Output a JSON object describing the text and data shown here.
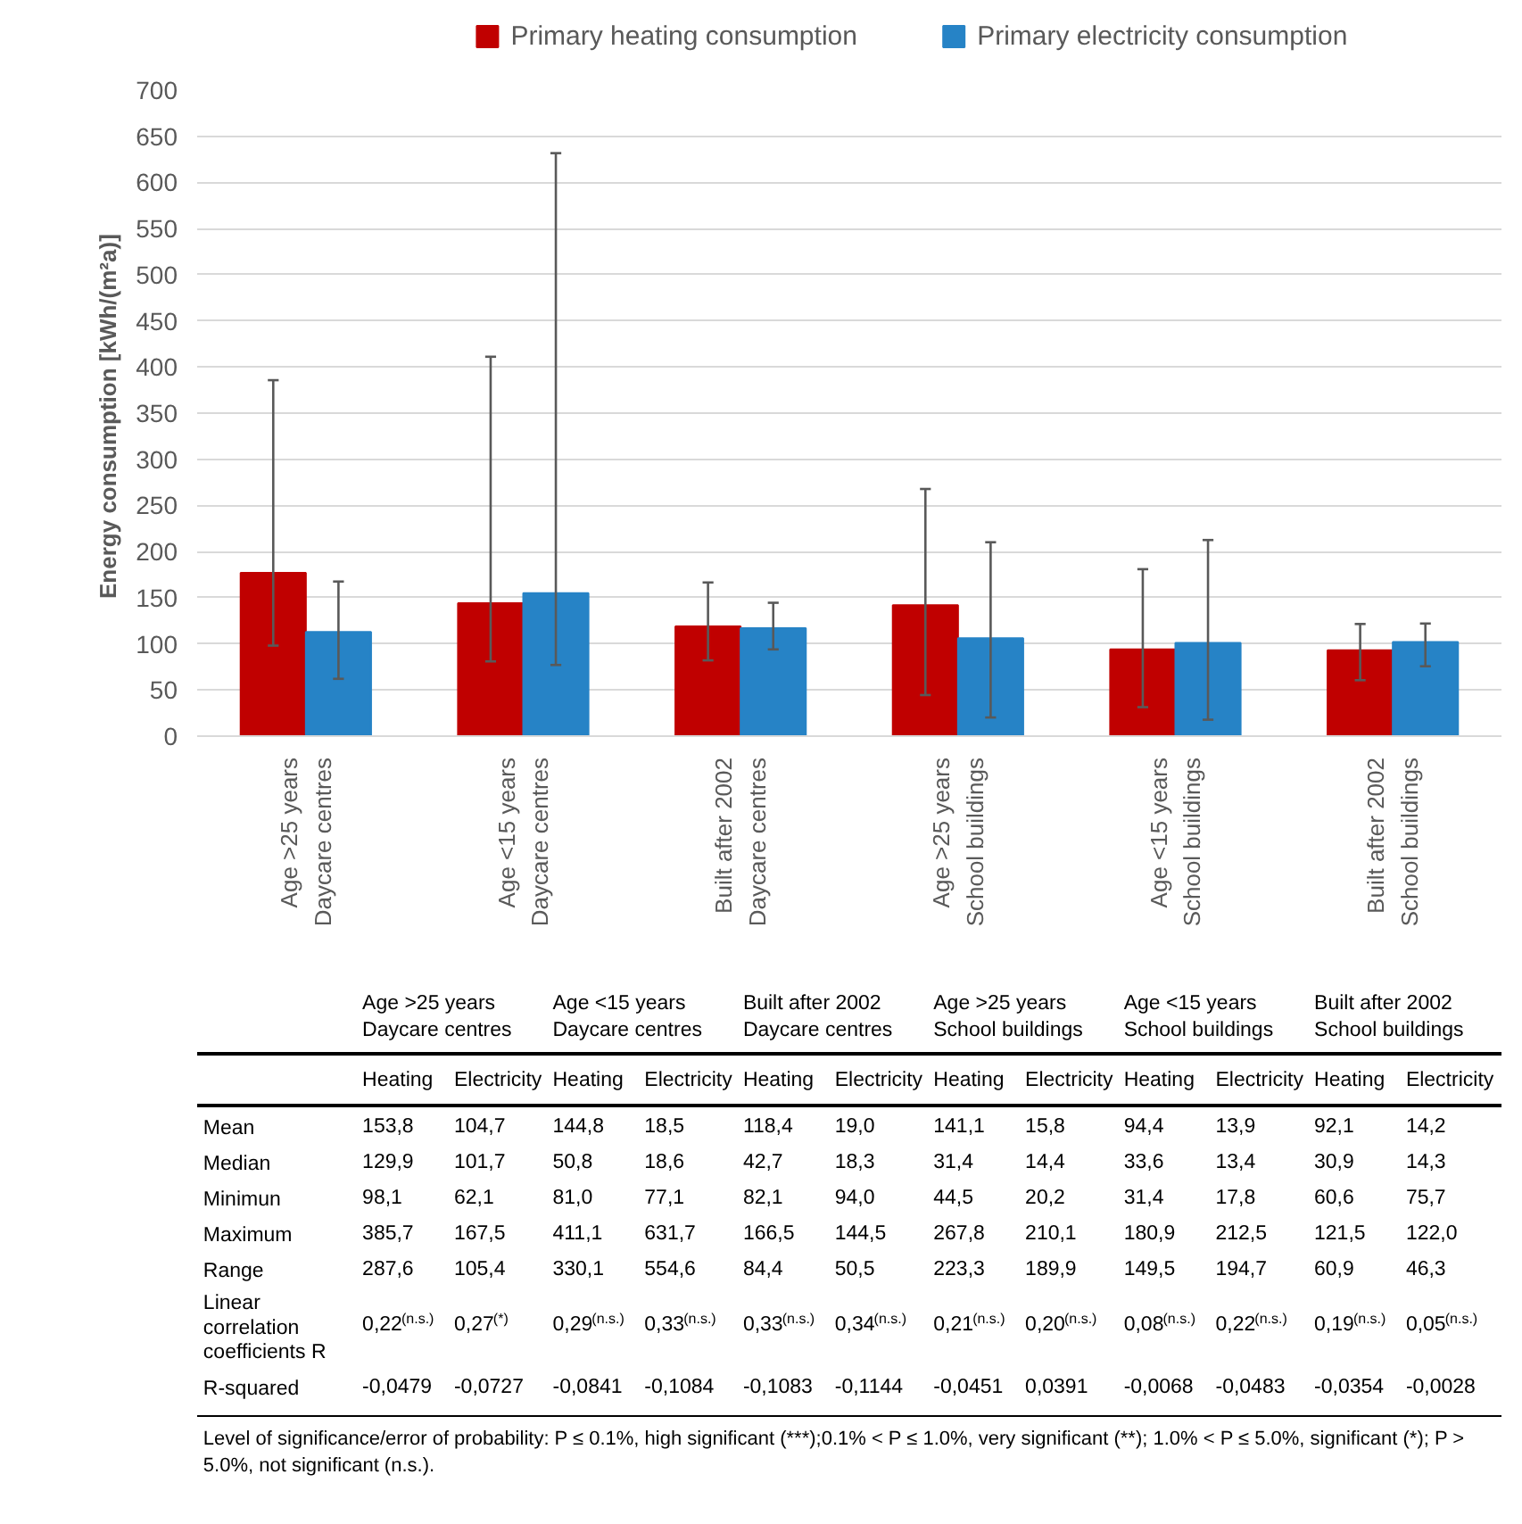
{
  "chart_data": {
    "type": "bar",
    "ylabel": "Energy consumption  [kWh/(m²a)]",
    "categories": [
      "Age >25 years\nDaycare centres",
      "Age <15 years\nDaycare centres",
      "Built after 2002\nDaycare centres",
      "Age >25 years\nSchool buildings",
      "Age <15 years\nSchool buildings",
      "Built after 2002\nSchool buildings"
    ],
    "series": [
      {
        "name": "Primary heating consumption",
        "color": "#c00000",
        "values": [
          177,
          144,
          119,
          142,
          94,
          93
        ],
        "errors": [
          [
            98.1,
            385.7
          ],
          [
            81.0,
            411.1
          ],
          [
            82.1,
            166.5
          ],
          [
            44.5,
            267.8
          ],
          [
            31.4,
            180.9
          ],
          [
            60.6,
            121.5
          ]
        ]
      },
      {
        "name": "Primary electricity consumption",
        "color": "#2683c6",
        "values": [
          113,
          155,
          117,
          106,
          101,
          102
        ],
        "errors": [
          [
            62.1,
            167.5
          ],
          [
            77.1,
            631.7
          ],
          [
            94.0,
            144.5
          ],
          [
            20.2,
            210.1
          ],
          [
            17.8,
            212.5
          ],
          [
            75.7,
            122.0
          ]
        ]
      }
    ],
    "ylim": [
      0,
      700
    ],
    "yticks": [
      0,
      50,
      100,
      150,
      200,
      250,
      300,
      350,
      400,
      450,
      500,
      550,
      600,
      650,
      700
    ],
    "grid": "y",
    "legend": "top",
    "annotations": [
      "Age >25 years\nDaycare centres",
      "Age <15 years\nDaycare centres",
      "Built after 2002\nDaycare centres",
      "Age >25 years\nSchool buildings",
      "Age <15 years\nSchool buildings",
      "Built after 2002\nSchool buildings",
      "Heating",
      "Electricity",
      "Heating",
      "Electricity",
      "Heating",
      "Electricity",
      "Heating",
      "Electricity",
      "Heating",
      "Electricity",
      "Heating",
      "Electricity",
      "Mean",
      "153,8",
      "104,7",
      "144,8",
      "18,5",
      "118,4",
      "19,0",
      "141,1",
      "15,8",
      "94,4",
      "13,9",
      "92,1",
      "14,2",
      "Median",
      "129,9",
      "101,7",
      "50,8",
      "18,6",
      "42,7",
      "18,3",
      "31,4",
      "14,4",
      "33,6",
      "13,4",
      "30,9",
      "14,3",
      "Minimun",
      "98,1",
      "62,1",
      "81,0",
      "77,1",
      "82,1",
      "94,0",
      "44,5",
      "20,2",
      "31,4",
      "17,8",
      "60,6",
      "75,7",
      "Maximum",
      "385,7",
      "167,5",
      "411,1",
      "631,7",
      "166,5",
      "144,5",
      "267,8",
      "210,1",
      "180,9",
      "212,5",
      "121,5",
      "122,0",
      "Range",
      "287,6",
      "105,4",
      "330,1",
      "554,6",
      "84,4",
      "50,5",
      "223,3",
      "189,9",
      "149,5",
      "194,7",
      "60,9",
      "46,3",
      "Linear\ncorrelation\ncoefficients R",
      "0,22$^{(n.s.)}$",
      "0,27$^{(*)}$",
      "0,29$^{(n.s.)}$",
      "0,33$^{(n.s.)}$",
      "0,33$^{(n.s.)}$",
      "0,34$^{(n.s.)}$",
      "0,21$^{(n.s.)}$",
      "0,20$^{(n.s.)}$",
      "0,08$^{(n.s.)}$",
      "0,22$^{(n.s.)}$",
      "0,19$^{(n.s.)}$",
      "0,05$^{(n.s.)}$",
      "R-squared",
      "-0,0479",
      "-0,0727",
      "-0,0841",
      "-0,1084",
      "-0,1083",
      "-0,1144",
      "-0,0451",
      "0,0391",
      "-0,0068",
      "-0,0483",
      "-0,0354",
      "-0,0028",
      "Level of significance/error of probability: P ≤ 0.1%, high significant (***);0.1% < P ≤ 1.0%, very significant (**); 1.0% < P ≤ 5.0%, significant (*); P >\n5.0%, not significant (n.s.)."
    ]
  }
}
